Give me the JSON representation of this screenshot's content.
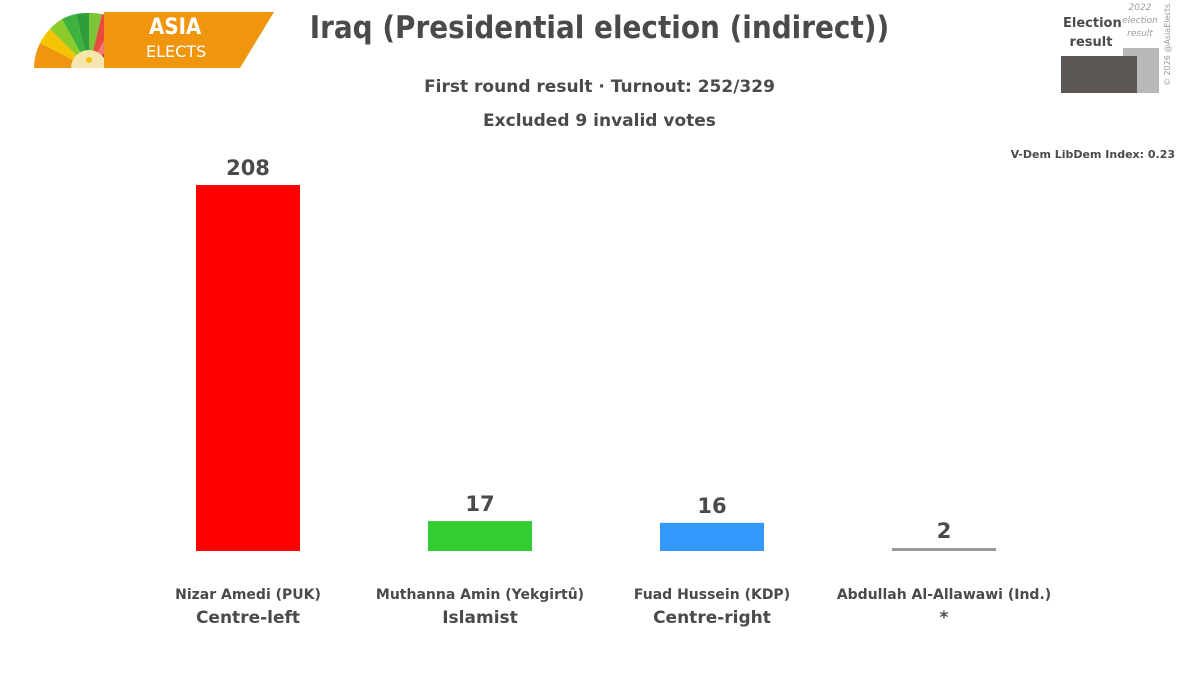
{
  "logo": {
    "line1": "ASIA",
    "line2": "ELECTS"
  },
  "header": {
    "title": "Iraq (Presidential election (indirect))",
    "subtitle_1": "First round result · Turnout: 252/329",
    "subtitle_2": "Excluded 9 invalid votes"
  },
  "legend": {
    "current_label": "Election result",
    "previous_label": "2022 election result",
    "copyright": "© 2026 @AsiaElects"
  },
  "vdem_note": "V-Dem LibDem Index: 0.23",
  "chart_data": {
    "type": "bar",
    "categories": [
      "Nizar Amedi (PUK)",
      "Muthanna Amin (Yekgirtû)",
      "Fuad Hussein (KDP)",
      "Abdullah Al-Allawawi (Ind.)"
    ],
    "subcategories": [
      "Centre-left",
      "Islamist",
      "Centre-right",
      "*"
    ],
    "values": [
      208,
      17,
      16,
      2
    ],
    "colors": [
      "#ff0000",
      "#33cc33",
      "#3399ff",
      "#999999"
    ],
    "title": "Iraq (Presidential election (indirect))",
    "xlabel": "",
    "ylabel": "",
    "grid": false,
    "legend": "top-right"
  }
}
